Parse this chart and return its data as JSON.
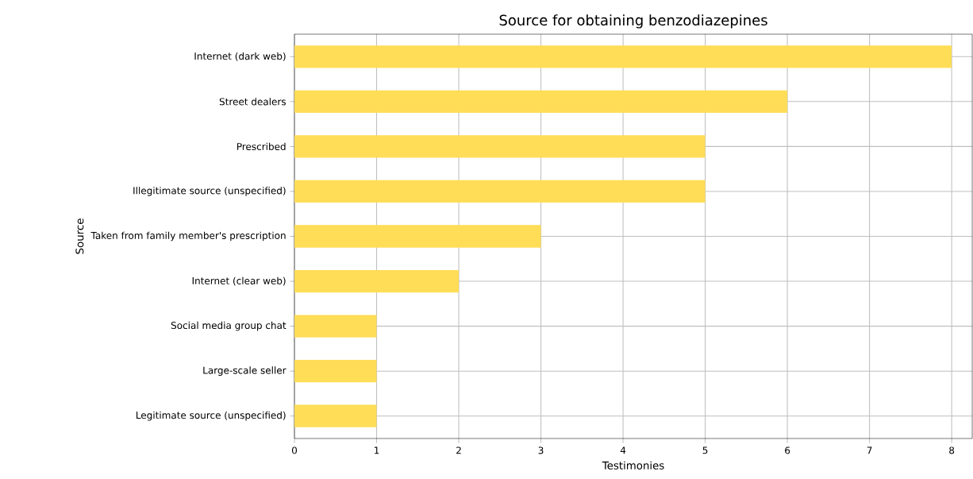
{
  "chart_data": {
    "type": "bar",
    "orientation": "horizontal",
    "title": "Source for obtaining benzodiazepines",
    "xlabel": "Testimonies",
    "ylabel": "Source",
    "categories": [
      "Internet (dark web)",
      "Street dealers",
      "Prescribed",
      "Illegitimate source (unspecified)",
      "Taken from family member's prescription",
      "Internet (clear web)",
      "Social media group chat",
      "Large-scale seller",
      "Legitimate source (unspecified)"
    ],
    "values": [
      8,
      6,
      5,
      5,
      3,
      2,
      1,
      1,
      1
    ],
    "color": "#ffdd57",
    "xlim": [
      0,
      8.25
    ],
    "xticks": [
      0,
      1,
      2,
      3,
      4,
      5,
      6,
      7,
      8
    ],
    "grid": true
  }
}
